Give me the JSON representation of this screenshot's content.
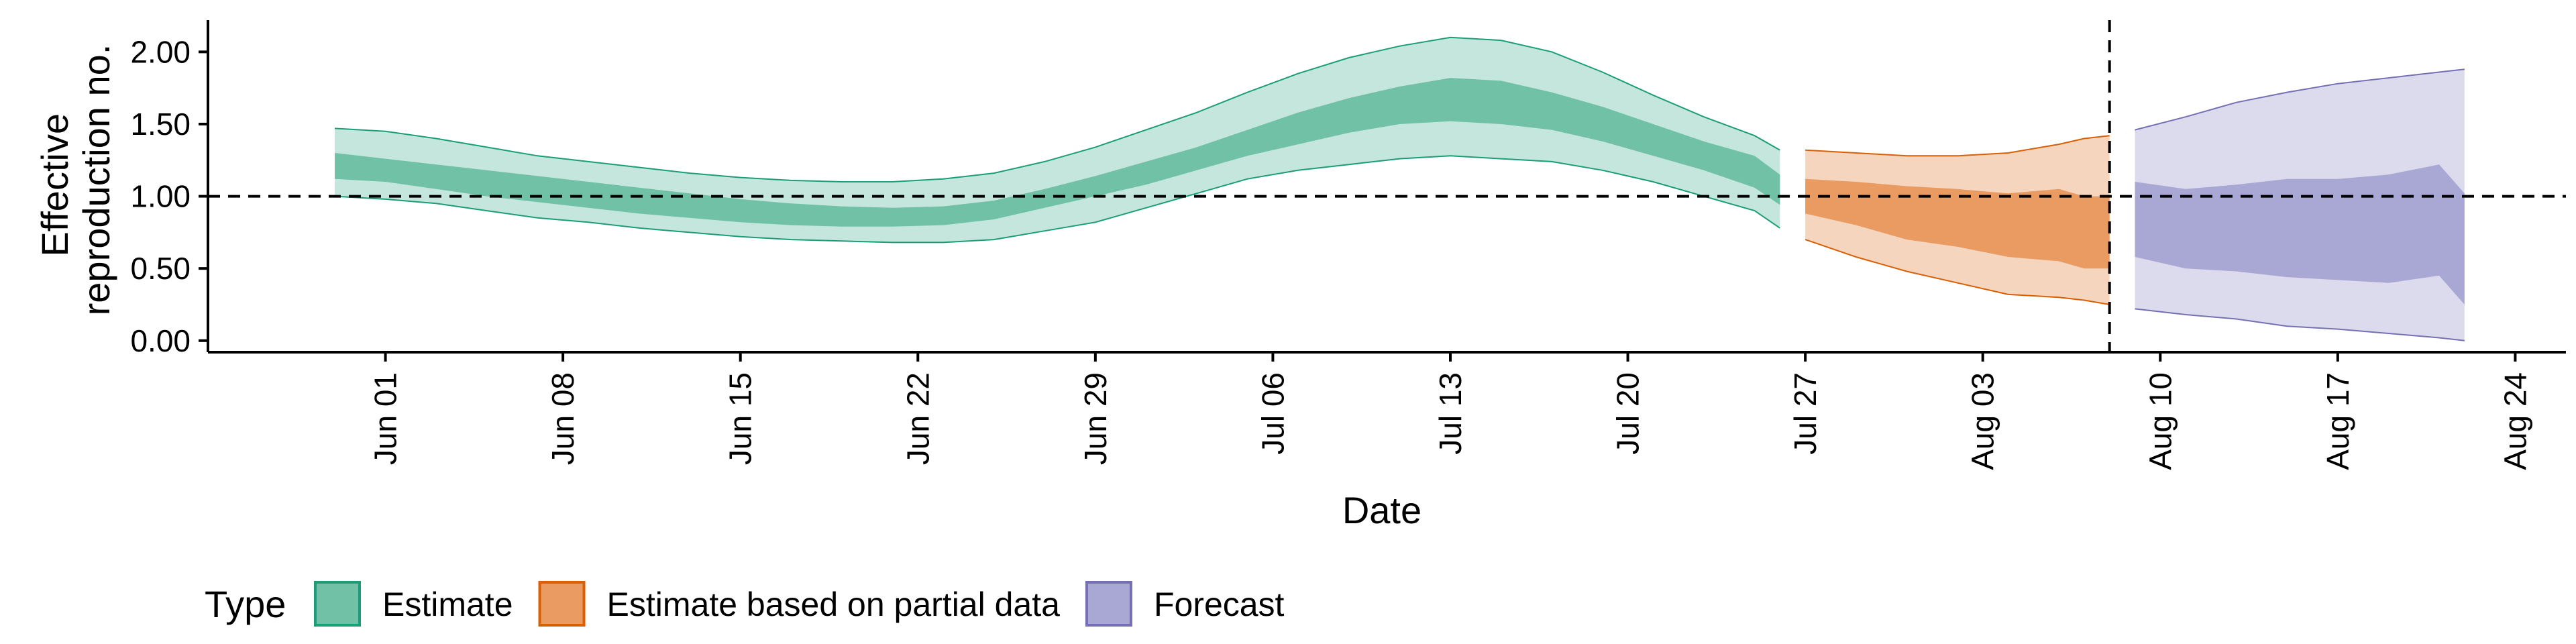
{
  "chart_data": {
    "type": "area",
    "title": "",
    "xlabel": "Date",
    "ylabel_lines": [
      "Effective",
      "reproduction no."
    ],
    "ylim": [
      -0.08,
      2.22
    ],
    "yticks": [
      0,
      0.5,
      1,
      1.5,
      2
    ],
    "ytick_labels": [
      "0.00",
      "0.50",
      "1.00",
      "1.50",
      "2.00"
    ],
    "xlim": [
      "2020-05-25",
      "2020-08-26"
    ],
    "xticks": [
      "2020-06-01",
      "2020-06-08",
      "2020-06-15",
      "2020-06-22",
      "2020-06-29",
      "2020-07-06",
      "2020-07-13",
      "2020-07-20",
      "2020-07-27",
      "2020-08-03",
      "2020-08-10",
      "2020-08-17",
      "2020-08-24"
    ],
    "xtick_labels": [
      "Jun 01",
      "Jun 08",
      "Jun 15",
      "Jun 22",
      "Jun 29",
      "Jul 06",
      "Jul 13",
      "Jul 20",
      "Jul 27",
      "Aug 03",
      "Aug 10",
      "Aug 17",
      "Aug 24"
    ],
    "hline": 1.0,
    "vline_date": "2020-08-08",
    "grid": false,
    "legend": {
      "title": "Type",
      "position": "bottom-left",
      "items": [
        "Estimate",
        "Estimate based on partial data",
        "Forecast"
      ]
    },
    "series": [
      {
        "name": "Estimate",
        "fill": "#71c1a6",
        "fill_outer": "#c5e6dc",
        "stroke": "#1b9e77",
        "x": [
          "2020-05-30",
          "2020-06-01",
          "2020-06-03",
          "2020-06-05",
          "2020-06-07",
          "2020-06-09",
          "2020-06-11",
          "2020-06-13",
          "2020-06-15",
          "2020-06-17",
          "2020-06-19",
          "2020-06-21",
          "2020-06-23",
          "2020-06-25",
          "2020-06-27",
          "2020-06-29",
          "2020-07-01",
          "2020-07-03",
          "2020-07-05",
          "2020-07-07",
          "2020-07-09",
          "2020-07-11",
          "2020-07-13",
          "2020-07-15",
          "2020-07-17",
          "2020-07-19",
          "2020-07-21",
          "2020-07-23",
          "2020-07-25",
          "2020-07-26"
        ],
        "lower_90": [
          1.0,
          0.98,
          0.95,
          0.9,
          0.85,
          0.82,
          0.78,
          0.75,
          0.72,
          0.7,
          0.69,
          0.68,
          0.68,
          0.7,
          0.76,
          0.82,
          0.92,
          1.02,
          1.12,
          1.18,
          1.22,
          1.26,
          1.28,
          1.26,
          1.24,
          1.18,
          1.1,
          1.0,
          0.9,
          0.78
        ],
        "lower_50": [
          1.12,
          1.1,
          1.05,
          1.0,
          0.96,
          0.92,
          0.88,
          0.85,
          0.82,
          0.8,
          0.79,
          0.79,
          0.8,
          0.84,
          0.92,
          1.0,
          1.08,
          1.18,
          1.28,
          1.36,
          1.44,
          1.5,
          1.52,
          1.5,
          1.46,
          1.38,
          1.28,
          1.18,
          1.06,
          0.94
        ],
        "upper_50": [
          1.3,
          1.26,
          1.22,
          1.18,
          1.14,
          1.1,
          1.06,
          1.02,
          0.98,
          0.95,
          0.93,
          0.92,
          0.93,
          0.97,
          1.05,
          1.14,
          1.24,
          1.34,
          1.46,
          1.58,
          1.68,
          1.76,
          1.82,
          1.8,
          1.72,
          1.62,
          1.5,
          1.38,
          1.28,
          1.15
        ],
        "upper_90": [
          1.47,
          1.45,
          1.4,
          1.34,
          1.28,
          1.24,
          1.2,
          1.16,
          1.13,
          1.11,
          1.1,
          1.1,
          1.12,
          1.16,
          1.24,
          1.34,
          1.46,
          1.58,
          1.72,
          1.85,
          1.96,
          2.04,
          2.1,
          2.08,
          2.0,
          1.86,
          1.7,
          1.55,
          1.42,
          1.32
        ]
      },
      {
        "name": "Estimate based on partial data",
        "fill": "#e99b62",
        "fill_outer": "#f6d5bf",
        "stroke": "#d95f02",
        "x": [
          "2020-07-27",
          "2020-07-29",
          "2020-07-31",
          "2020-08-02",
          "2020-08-04",
          "2020-08-06",
          "2020-08-07",
          "2020-08-08"
        ],
        "lower_90": [
          0.7,
          0.58,
          0.48,
          0.4,
          0.32,
          0.3,
          0.28,
          0.25
        ],
        "lower_50": [
          0.88,
          0.8,
          0.7,
          0.65,
          0.58,
          0.55,
          0.5,
          0.5
        ],
        "upper_50": [
          1.12,
          1.1,
          1.07,
          1.05,
          1.02,
          1.05,
          1.0,
          1.0
        ],
        "upper_90": [
          1.32,
          1.3,
          1.28,
          1.28,
          1.3,
          1.36,
          1.4,
          1.42
        ]
      },
      {
        "name": "Forecast",
        "fill": "#a9a7d3",
        "fill_outer": "#dcdbee",
        "stroke": "#7570b3",
        "x": [
          "2020-08-09",
          "2020-08-11",
          "2020-08-13",
          "2020-08-15",
          "2020-08-17",
          "2020-08-19",
          "2020-08-21",
          "2020-08-22"
        ],
        "lower_90": [
          0.22,
          0.18,
          0.15,
          0.1,
          0.08,
          0.05,
          0.02,
          0.0
        ],
        "lower_50": [
          0.58,
          0.5,
          0.48,
          0.44,
          0.42,
          0.4,
          0.45,
          0.25
        ],
        "upper_50": [
          1.1,
          1.05,
          1.08,
          1.12,
          1.12,
          1.15,
          1.22,
          1.02
        ],
        "upper_90": [
          1.46,
          1.55,
          1.65,
          1.72,
          1.78,
          1.82,
          1.86,
          1.88
        ]
      }
    ]
  }
}
